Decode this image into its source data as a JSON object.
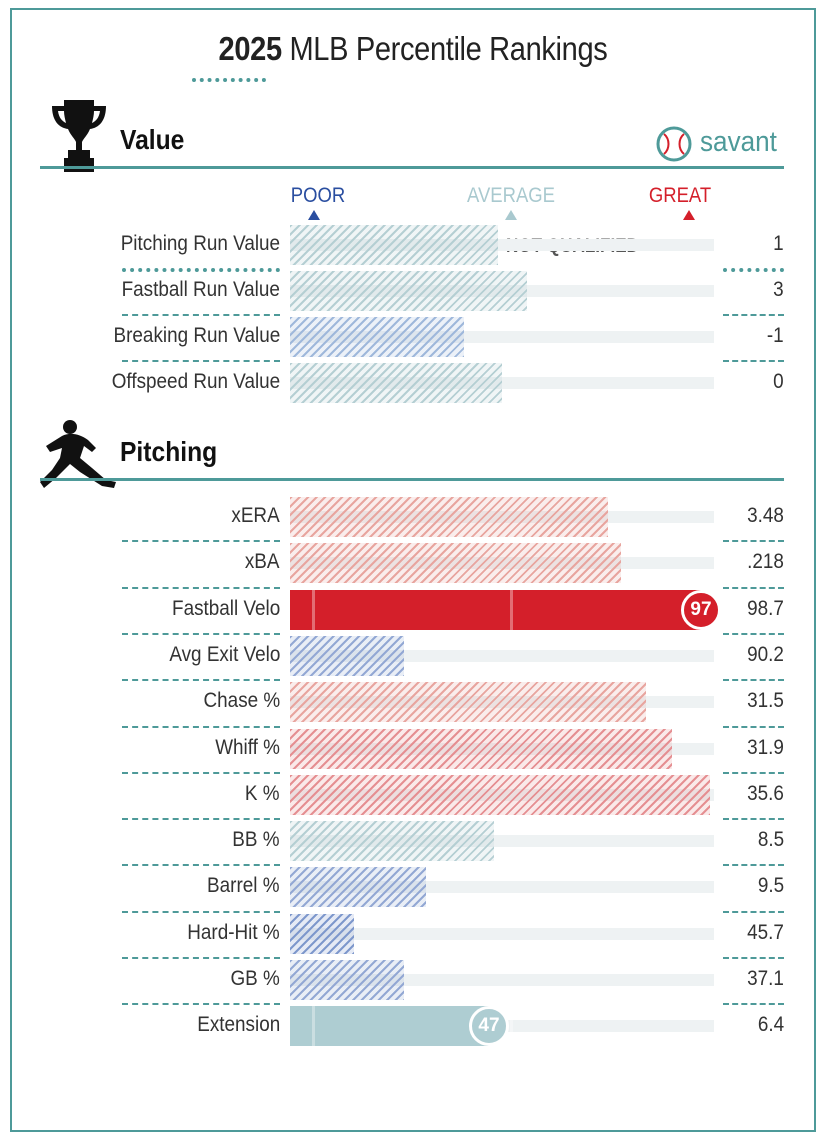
{
  "header": {
    "title_year": "2025",
    "title_rest": " MLB Percentile Rankings",
    "brand": "savant"
  },
  "scale": {
    "poor": "POOR",
    "average": "AVERAGE",
    "great": "GREAT",
    "poor_color": "#2a4ea0",
    "average_color": "#a9c9cf",
    "great_color": "#d41f2a"
  },
  "colors": {
    "accent": "#4e9a99",
    "teal_bar": "#aecdd2",
    "track": "#eef2f3"
  },
  "chart_data": [
    {
      "type": "bar",
      "title": "Value",
      "xlim": [
        0,
        100
      ],
      "note": "NOT QUALIFIED",
      "rows": [
        {
          "label": "Pitching Run Value",
          "percentile": 49,
          "value": "1",
          "color": "#b5cfd3",
          "style": "hatched"
        },
        {
          "label": "Fastball Run Value",
          "percentile": 56,
          "value": "3",
          "color": "#b5cfd3",
          "style": "hatched"
        },
        {
          "label": "Breaking Run Value",
          "percentile": 41,
          "value": "-1",
          "color": "#9fb8db",
          "style": "hatched"
        },
        {
          "label": "Offspeed Run Value",
          "percentile": 50,
          "value": "0",
          "color": "#b5cfd3",
          "style": "hatched"
        }
      ]
    },
    {
      "type": "bar",
      "title": "Pitching",
      "xlim": [
        0,
        100
      ],
      "rows": [
        {
          "label": "xERA",
          "percentile": 75,
          "value": "3.48",
          "color": "#e8a59f",
          "style": "hatched"
        },
        {
          "label": "xBA",
          "percentile": 78,
          "value": ".218",
          "color": "#e8a59f",
          "style": "hatched"
        },
        {
          "label": "Fastball Velo",
          "percentile": 97,
          "value": "98.7",
          "color": "#d41f2a",
          "style": "solid",
          "badge": "97"
        },
        {
          "label": "Avg Exit Velo",
          "percentile": 27,
          "value": "90.2",
          "color": "#93a8d4",
          "style": "hatched"
        },
        {
          "label": "Chase %",
          "percentile": 84,
          "value": "31.5",
          "color": "#e8a59f",
          "style": "hatched"
        },
        {
          "label": "Whiff %",
          "percentile": 90,
          "value": "31.9",
          "color": "#e58f92",
          "style": "hatched"
        },
        {
          "label": "K %",
          "percentile": 99,
          "value": "35.6",
          "color": "#e58f92",
          "style": "hatched"
        },
        {
          "label": "BB %",
          "percentile": 48,
          "value": "8.5",
          "color": "#b5cfd3",
          "style": "hatched"
        },
        {
          "label": "Barrel %",
          "percentile": 32,
          "value": "9.5",
          "color": "#93a8d4",
          "style": "hatched"
        },
        {
          "label": "Hard-Hit %",
          "percentile": 15,
          "value": "45.7",
          "color": "#7e98cc",
          "style": "hatched"
        },
        {
          "label": "GB %",
          "percentile": 27,
          "value": "37.1",
          "color": "#93a8d4",
          "style": "hatched"
        },
        {
          "label": "Extension",
          "percentile": 47,
          "value": "6.4",
          "color": "#aecdd2",
          "style": "solid",
          "badge": "47"
        }
      ]
    }
  ]
}
